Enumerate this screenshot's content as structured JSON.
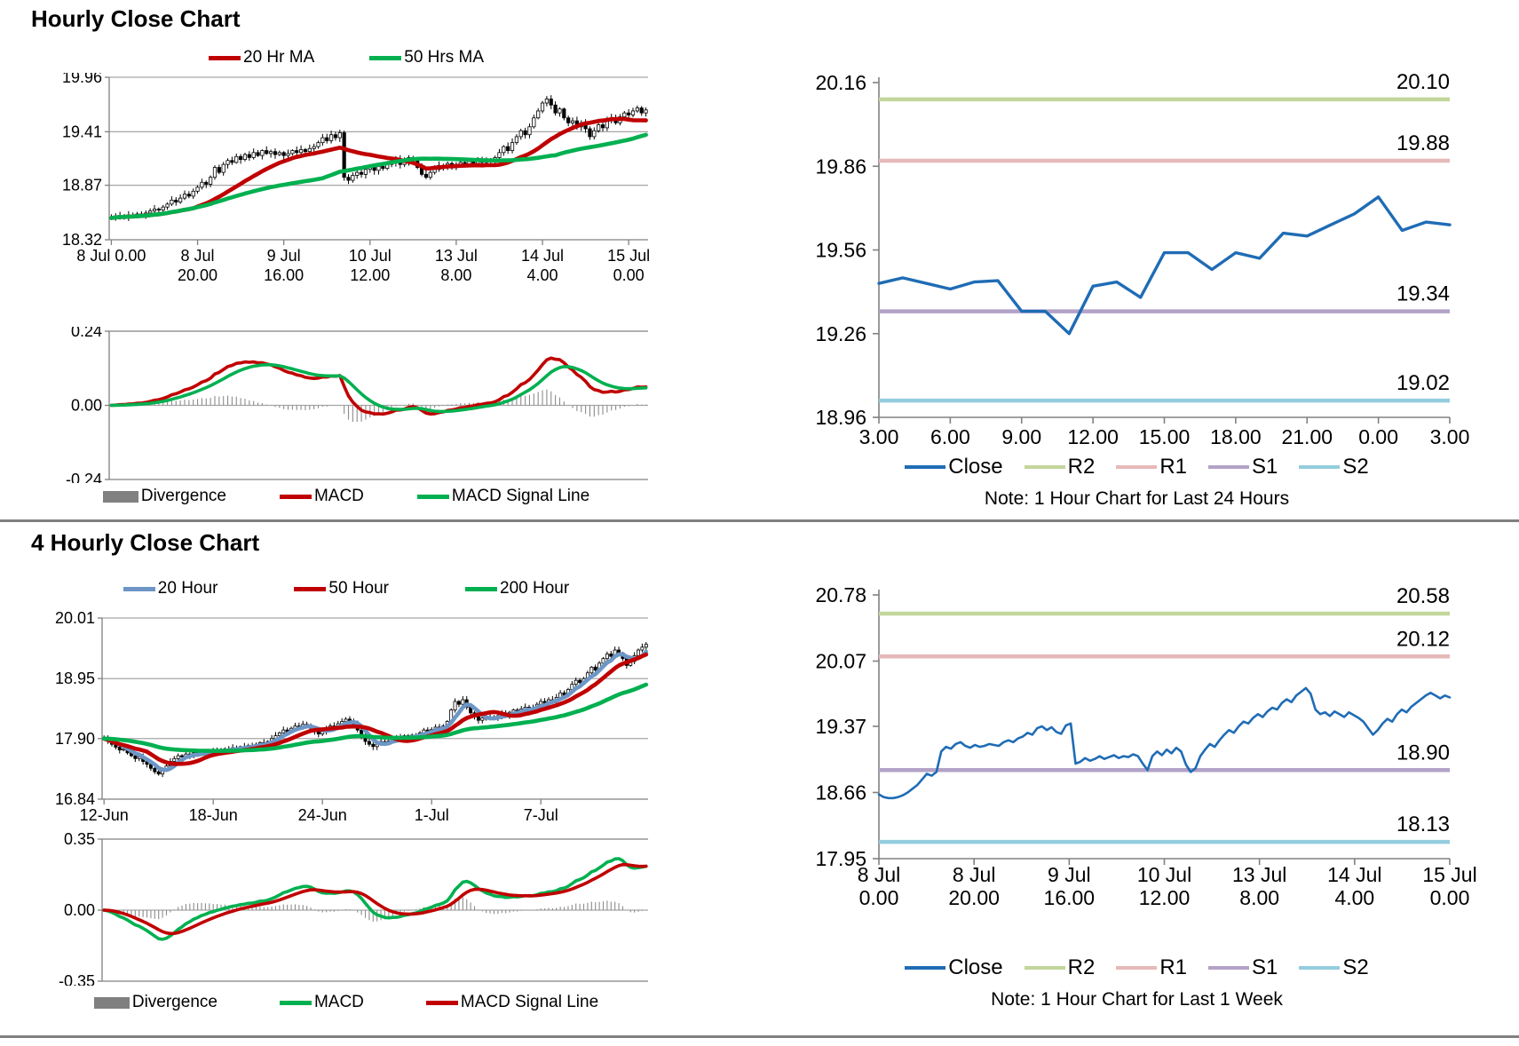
{
  "sections": {
    "hourly": {
      "title": "Hourly Close Chart"
    },
    "fourhourly": {
      "title": "4 Hourly Close Chart"
    }
  },
  "palette": {
    "grid": "#A6A6A6",
    "axis": "#808080",
    "candle": "#000000",
    "divergence_bar": "#8C8C8C",
    "close_blue": "#1F6CB5",
    "steel_blue": "#6D96C6",
    "dark_red": "#C00000",
    "green": "#00B050",
    "r2": "#C3D69B",
    "r1": "#E6B9B8",
    "s1": "#B3A2C7",
    "s2": "#93CDDD"
  },
  "chart_data": [
    {
      "id": "hourly_candle",
      "type": "candlestick",
      "legend": [
        {
          "label": "20 Hr MA",
          "color": "#C00000",
          "swatch": "line"
        },
        {
          "label": "50 Hrs MA",
          "color": "#00B050",
          "swatch": "line"
        }
      ],
      "y_ticks": {
        "labels": [
          "19.96",
          "19.41",
          "18.87",
          "18.32"
        ],
        "values": [
          19.96,
          19.41,
          18.87,
          18.32
        ]
      },
      "ylim": [
        18.32,
        19.96
      ],
      "x_ticks": [
        {
          "line1": "8 Jul 0.00",
          "line2": ""
        },
        {
          "line1": "8 Jul",
          "line2": "20.00"
        },
        {
          "line1": "9 Jul",
          "line2": "16.00"
        },
        {
          "line1": "10 Jul",
          "line2": "12.00"
        },
        {
          "line1": "13 Jul",
          "line2": "8.00"
        },
        {
          "line1": "14 Jul",
          "line2": "4.00"
        },
        {
          "line1": "15 Jul",
          "line2": "0.00"
        }
      ],
      "ma": [
        {
          "name": "20 Hr MA",
          "window": 20,
          "color": "#C00000",
          "ema": false
        },
        {
          "name": "50 Hrs MA",
          "window": 50,
          "color": "#00B050",
          "ema": false
        }
      ],
      "closes": [
        18.54,
        18.55,
        18.56,
        18.55,
        18.57,
        18.56,
        18.58,
        18.57,
        18.59,
        18.61,
        18.63,
        18.62,
        18.65,
        18.68,
        18.72,
        18.7,
        18.74,
        18.78,
        18.76,
        18.81,
        18.85,
        18.9,
        18.88,
        18.95,
        19.05,
        19.0,
        19.08,
        19.12,
        19.1,
        19.16,
        19.13,
        19.18,
        19.15,
        19.2,
        19.17,
        19.22,
        19.19,
        19.21,
        19.18,
        19.2,
        19.17,
        19.19,
        19.22,
        19.2,
        19.23,
        19.21,
        19.24,
        19.26,
        19.3,
        19.35,
        19.32,
        19.38,
        19.35,
        19.4,
        18.95,
        18.92,
        18.97,
        19.0,
        18.98,
        19.03,
        19.05,
        19.02,
        19.06,
        19.04,
        19.08,
        19.1,
        19.13,
        19.08,
        19.11,
        19.15,
        19.12,
        19.05,
        18.98,
        18.95,
        19.0,
        19.03,
        19.07,
        19.05,
        19.09,
        19.06,
        19.08,
        19.1,
        19.07,
        19.11,
        19.09,
        19.12,
        19.1,
        19.13,
        19.11,
        19.15,
        19.2,
        19.26,
        19.22,
        19.3,
        19.36,
        19.42,
        19.38,
        19.46,
        19.55,
        19.62,
        19.7,
        19.74,
        19.68,
        19.6,
        19.64,
        19.55,
        19.5,
        19.52,
        19.46,
        19.5,
        19.44,
        19.36,
        19.42,
        19.48,
        19.45,
        19.52,
        19.55,
        19.5,
        19.56,
        19.6,
        19.58,
        19.62,
        19.65,
        19.6,
        19.63
      ]
    },
    {
      "id": "hourly_macd",
      "type": "macd",
      "source": "hourly_candle",
      "fast": 12,
      "slow": 26,
      "signal_window": 9,
      "macd_color": "#C00000",
      "signal_color": "#00B050",
      "y_ticks": {
        "labels": [
          "0.24",
          "0.00",
          "-0.24"
        ],
        "values": [
          0.24,
          0,
          -0.24
        ]
      },
      "ylim": [
        -0.24,
        0.24
      ],
      "legend": [
        {
          "label": "Divergence",
          "color": "#808080",
          "swatch": "box"
        },
        {
          "label": "MACD",
          "color": "#C00000",
          "swatch": "line"
        },
        {
          "label": "MACD Signal Line",
          "color": "#00B050",
          "swatch": "line"
        }
      ]
    },
    {
      "id": "pivot_24h",
      "type": "line",
      "note": "Note: 1 Hour Chart for Last 24 Hours",
      "close_color": "#1F6CB5",
      "y_ticks": {
        "labels": [
          "20.16",
          "19.86",
          "19.56",
          "19.26",
          "18.96"
        ],
        "values": [
          20.16,
          19.86,
          19.56,
          19.26,
          18.96
        ]
      },
      "ylim": [
        18.96,
        20.16
      ],
      "x_labels": [
        "3.00",
        "6.00",
        "9.00",
        "12.00",
        "15.00",
        "18.00",
        "21.00",
        "0.00",
        "3.00"
      ],
      "levels": [
        {
          "name": "R2",
          "value": 20.1,
          "label": "20.10",
          "color": "#C3D69B"
        },
        {
          "name": "R1",
          "value": 19.88,
          "label": "19.88",
          "color": "#E6B9B8"
        },
        {
          "name": "S1",
          "value": 19.34,
          "label": "19.34",
          "color": "#B3A2C7"
        },
        {
          "name": "S2",
          "value": 19.02,
          "label": "19.02",
          "color": "#93CDDD"
        }
      ],
      "legend": [
        {
          "label": "Close",
          "color": "#1F6CB5",
          "swatch": "line"
        },
        {
          "label": "R2",
          "color": "#C3D69B",
          "swatch": "line"
        },
        {
          "label": "R1",
          "color": "#E6B9B8",
          "swatch": "line"
        },
        {
          "label": "S1",
          "color": "#B3A2C7",
          "swatch": "line"
        },
        {
          "label": "S2",
          "color": "#93CDDD",
          "swatch": "line"
        }
      ],
      "close": [
        19.44,
        19.46,
        19.44,
        19.42,
        19.445,
        19.45,
        19.34,
        19.34,
        19.26,
        19.43,
        19.445,
        19.39,
        19.55,
        19.55,
        19.49,
        19.55,
        19.53,
        19.62,
        19.61,
        19.65,
        19.69,
        19.75,
        19.63,
        19.66,
        19.65
      ]
    },
    {
      "id": "fourhourly_candle",
      "type": "candlestick",
      "legend": [
        {
          "label": "20 Hour",
          "color": "#6D96C6",
          "swatch": "line"
        },
        {
          "label": "50 Hour",
          "color": "#C00000",
          "swatch": "line"
        },
        {
          "label": "200 Hour",
          "color": "#00B050",
          "swatch": "line"
        }
      ],
      "y_ticks": {
        "labels": [
          "20.01",
          "18.95",
          "17.90",
          "16.84"
        ],
        "values": [
          20.01,
          18.95,
          17.9,
          16.84
        ]
      },
      "ylim": [
        16.84,
        20.01
      ],
      "x_ticks": [
        {
          "line1": "12-Jun",
          "line2": ""
        },
        {
          "line1": "18-Jun",
          "line2": ""
        },
        {
          "line1": "24-Jun",
          "line2": ""
        },
        {
          "line1": "1-Jul",
          "line2": ""
        },
        {
          "line1": "7-Jul",
          "line2": ""
        }
      ],
      "ma": [
        {
          "name": "20 Hour",
          "window": 5,
          "color": "#6D96C6",
          "ema": false
        },
        {
          "name": "50 Hour",
          "window": 12,
          "color": "#C00000",
          "ema": false
        },
        {
          "name": "200 Hour",
          "window": 50,
          "color": "#00B050",
          "ema": true
        }
      ],
      "closes": [
        17.9,
        17.85,
        17.8,
        17.75,
        17.7,
        17.72,
        17.65,
        17.6,
        17.55,
        17.58,
        17.5,
        17.45,
        17.38,
        17.32,
        17.28,
        17.35,
        17.42,
        17.5,
        17.55,
        17.6,
        17.58,
        17.63,
        17.6,
        17.65,
        17.62,
        17.66,
        17.64,
        17.68,
        17.65,
        17.7,
        17.68,
        17.72,
        17.7,
        17.74,
        17.72,
        17.76,
        17.74,
        17.78,
        17.76,
        17.8,
        17.83,
        17.8,
        17.85,
        17.9,
        17.95,
        18.0,
        18.05,
        18.02,
        18.08,
        18.12,
        18.1,
        18.15,
        18.12,
        18.08,
        18.02,
        17.98,
        18.02,
        18.08,
        18.12,
        18.1,
        18.16,
        18.2,
        18.24,
        18.2,
        18.15,
        18.05,
        17.95,
        17.85,
        17.8,
        17.76,
        17.8,
        17.85,
        17.82,
        17.86,
        17.9,
        17.88,
        17.92,
        17.95,
        17.92,
        17.96,
        17.95,
        18.0,
        18.05,
        18.02,
        18.06,
        18.1,
        18.08,
        18.12,
        18.2,
        18.4,
        18.55,
        18.5,
        18.58,
        18.45,
        18.35,
        18.28,
        18.22,
        18.26,
        18.24,
        18.28,
        18.26,
        18.3,
        18.34,
        18.3,
        18.36,
        18.4,
        18.36,
        18.42,
        18.45,
        18.4,
        18.44,
        18.5,
        18.55,
        18.52,
        18.58,
        18.55,
        18.62,
        18.7,
        18.66,
        18.76,
        18.85,
        18.92,
        18.88,
        18.95,
        19.05,
        19.15,
        19.1,
        19.22,
        19.3,
        19.38,
        19.34,
        19.45,
        19.4,
        19.3,
        19.18,
        19.25,
        19.35,
        19.45,
        19.5,
        19.55
      ]
    },
    {
      "id": "fourhourly_macd",
      "type": "macd",
      "source": "fourhourly_candle",
      "fast": 12,
      "slow": 26,
      "signal_window": 9,
      "macd_color": "#00B050",
      "signal_color": "#C00000",
      "y_ticks": {
        "labels": [
          "0.35",
          "0.00",
          "-0.35"
        ],
        "values": [
          0.35,
          0,
          -0.35
        ]
      },
      "ylim": [
        -0.35,
        0.35
      ],
      "legend": [
        {
          "label": "Divergence",
          "color": "#808080",
          "swatch": "box"
        },
        {
          "label": "MACD",
          "color": "#00B050",
          "swatch": "line"
        },
        {
          "label": "MACD Signal Line",
          "color": "#C00000",
          "swatch": "line"
        }
      ]
    },
    {
      "id": "pivot_1week",
      "type": "line",
      "note": "Note: 1 Hour Chart for Last 1 Week",
      "close_color": "#1F6CB5",
      "y_ticks": {
        "labels": [
          "20.78",
          "20.07",
          "19.37",
          "18.66",
          "17.95"
        ],
        "values": [
          20.78,
          20.07,
          19.37,
          18.66,
          17.95
        ]
      },
      "ylim": [
        17.95,
        20.78
      ],
      "x_labels_two_line": [
        [
          "8 Jul",
          "0.00"
        ],
        [
          "8 Jul",
          "20.00"
        ],
        [
          "9 Jul",
          "16.00"
        ],
        [
          "10 Jul",
          "12.00"
        ],
        [
          "13 Jul",
          "8.00"
        ],
        [
          "14 Jul",
          "4.00"
        ],
        [
          "15 Jul",
          "0.00"
        ]
      ],
      "levels": [
        {
          "name": "R2",
          "value": 20.58,
          "label": "20.58",
          "color": "#C3D69B"
        },
        {
          "name": "R1",
          "value": 20.12,
          "label": "20.12",
          "color": "#E6B9B8"
        },
        {
          "name": "S1",
          "value": 18.9,
          "label": "18.90",
          "color": "#B3A2C7"
        },
        {
          "name": "S2",
          "value": 18.13,
          "label": "18.13",
          "color": "#93CDDD"
        }
      ],
      "legend": [
        {
          "label": "Close",
          "color": "#1F6CB5",
          "swatch": "line"
        },
        {
          "label": "R2",
          "color": "#C3D69B",
          "swatch": "line"
        },
        {
          "label": "R1",
          "color": "#E6B9B8",
          "swatch": "line"
        },
        {
          "label": "S1",
          "color": "#B3A2C7",
          "swatch": "line"
        },
        {
          "label": "S2",
          "color": "#93CDDD",
          "swatch": "line"
        }
      ],
      "close": [
        18.64,
        18.61,
        18.6,
        18.6,
        18.61,
        18.63,
        18.66,
        18.7,
        18.74,
        18.8,
        18.86,
        18.84,
        18.88,
        19.1,
        19.15,
        19.13,
        19.18,
        19.2,
        19.16,
        19.14,
        19.17,
        19.15,
        19.16,
        19.18,
        19.17,
        19.16,
        19.2,
        19.22,
        19.2,
        19.24,
        19.26,
        19.3,
        19.28,
        19.35,
        19.37,
        19.33,
        19.36,
        19.31,
        19.29,
        19.38,
        19.4,
        18.97,
        18.99,
        19.03,
        19.0,
        19.02,
        19.05,
        19.02,
        19.04,
        19.06,
        19.03,
        19.05,
        19.04,
        19.07,
        19.05,
        18.97,
        18.9,
        19.05,
        19.1,
        19.06,
        19.12,
        19.08,
        19.14,
        19.1,
        18.96,
        18.88,
        18.92,
        19.05,
        19.12,
        19.18,
        19.15,
        19.22,
        19.28,
        19.33,
        19.3,
        19.37,
        19.42,
        19.4,
        19.46,
        19.5,
        19.47,
        19.53,
        19.57,
        19.55,
        19.62,
        19.66,
        19.63,
        19.7,
        19.74,
        19.78,
        19.72,
        19.55,
        19.5,
        19.52,
        19.48,
        19.53,
        19.5,
        19.47,
        19.52,
        19.49,
        19.46,
        19.42,
        19.35,
        19.28,
        19.33,
        19.4,
        19.45,
        19.42,
        19.5,
        19.55,
        19.52,
        19.58,
        19.62,
        19.66,
        19.7,
        19.73,
        19.7,
        19.67,
        19.7,
        19.68
      ]
    }
  ]
}
